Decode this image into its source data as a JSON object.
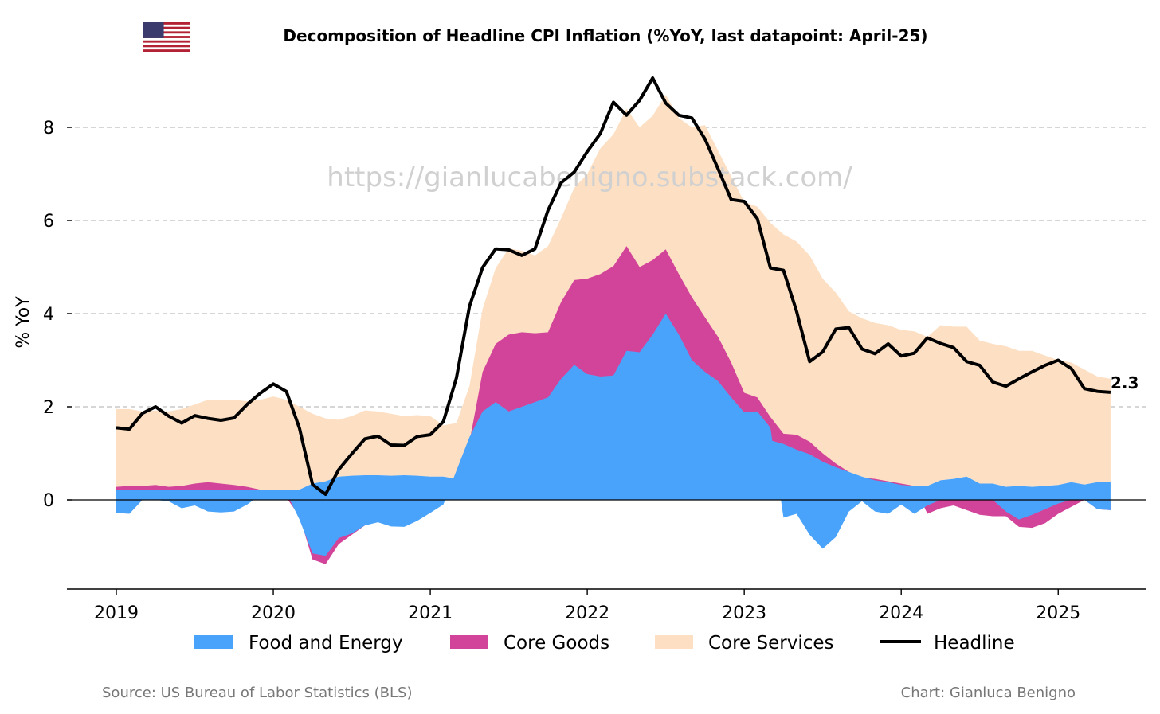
{
  "title": "Decomposition of Headline CPI Inflation (%YoY, last datapoint: April-25)",
  "watermark": "https://gianlucabenigno.substack.com/",
  "source": "Source: US Bureau of Labor Statistics (BLS)",
  "credit": "Chart: Gianluca Benigno",
  "flag_icon": "us-flag-icon",
  "chart_data": {
    "type": "area",
    "ylabel": "% YoY",
    "ylim": [
      -1.9,
      9.3
    ],
    "yticks": [
      0,
      2,
      4,
      6,
      8
    ],
    "xticks": [
      "2019",
      "2020",
      "2021",
      "2022",
      "2023",
      "2024",
      "2025"
    ],
    "x_start": "2019-01",
    "x_end": "2025-04",
    "grid": "horizontal dashed",
    "legend_position": "bottom",
    "end_label": "2.3",
    "colors": {
      "food_energy": "#4aa3fb",
      "core_goods": "#d2449a",
      "core_services": "#fde0c4",
      "headline": "#000000"
    },
    "series": [
      {
        "name": "Food and Energy",
        "values": [
          -0.28,
          -0.3,
          0.0,
          0.0,
          -0.03,
          -0.18,
          -0.12,
          -0.25,
          -0.27,
          -0.25,
          -0.1,
          0.1,
          0.2,
          0.15,
          -0.42,
          -1.15,
          -1.2,
          -0.82,
          -0.72,
          -0.55,
          -0.48,
          -0.57,
          -0.58,
          -0.45,
          -0.28,
          -0.1,
          0.63,
          1.35,
          1.9,
          2.1,
          1.9,
          2.0,
          2.1,
          2.2,
          2.6,
          2.9,
          2.7,
          2.65,
          2.67,
          3.2,
          3.17,
          3.55,
          4.0,
          3.55,
          3.0,
          2.75,
          2.55,
          2.2,
          1.88,
          1.9,
          1.55,
          -0.38,
          -0.3,
          -0.75,
          -1.05,
          -0.8,
          -0.25,
          -0.03,
          -0.25,
          -0.3,
          -0.1,
          -0.3,
          -0.12,
          0.0,
          0.1,
          0.1,
          0.08,
          0.0,
          -0.25,
          -0.42,
          -0.32,
          -0.2,
          -0.08,
          0.0,
          0.0,
          -0.2,
          -0.22
        ],
        "share": [
          0.22,
          0.22,
          0.22,
          0.22,
          0.22,
          0.22,
          0.22,
          0.22,
          0.22,
          0.22,
          0.22,
          0.22,
          0.22,
          0.22,
          0.22,
          0.35,
          0.4,
          0.5,
          0.52,
          0.53,
          0.53,
          0.52,
          0.53,
          0.52,
          0.5,
          0.5,
          0.45,
          0.4,
          0.32,
          0.3,
          0.32,
          0.4,
          0.5,
          0.6,
          0.7,
          0.78,
          0.82,
          0.9,
          1.0,
          1.1,
          1.2,
          1.3,
          1.35,
          1.4,
          1.45,
          1.48,
          1.45,
          1.42,
          1.4,
          1.35,
          1.28,
          1.2,
          1.08,
          0.98,
          0.82,
          0.7,
          0.6,
          0.5,
          0.42,
          0.38,
          0.32,
          0.3,
          0.3,
          0.42,
          0.45,
          0.5,
          0.35,
          0.35,
          0.28,
          0.3,
          0.28,
          0.3,
          0.32,
          0.38,
          0.33,
          0.38,
          0.38
        ]
      },
      {
        "name": "Core Goods",
        "values": [
          0.28,
          0.3,
          0.3,
          0.32,
          0.28,
          0.3,
          0.35,
          0.38,
          0.35,
          0.32,
          0.28,
          0.22,
          0.2,
          0.05,
          -0.35,
          -1.28,
          -1.38,
          -0.95,
          -0.75,
          -0.55,
          -0.45,
          -0.5,
          -0.5,
          -0.4,
          -0.25,
          -0.05,
          0.35,
          1.25,
          2.75,
          3.35,
          3.55,
          3.6,
          3.58,
          3.6,
          4.25,
          4.72,
          4.75,
          4.85,
          5.02,
          5.45,
          5.0,
          5.15,
          5.38,
          4.85,
          4.35,
          3.92,
          3.5,
          2.95,
          2.3,
          2.2,
          1.78,
          1.42,
          1.4,
          1.25,
          1.0,
          0.78,
          0.6,
          0.48,
          0.45,
          0.4,
          0.35,
          0.3,
          -0.3,
          -0.18,
          -0.12,
          -0.22,
          -0.32,
          -0.35,
          -0.35,
          -0.58,
          -0.6,
          -0.5,
          -0.3,
          -0.15,
          0.0,
          -0.2,
          -0.22
        ]
      },
      {
        "name": "Core Services",
        "values": [
          1.95,
          1.95,
          1.9,
          1.92,
          1.9,
          1.95,
          2.05,
          2.15,
          2.15,
          2.15,
          2.12,
          2.15,
          2.22,
          2.15,
          2.0,
          1.85,
          1.75,
          1.72,
          1.8,
          1.92,
          1.9,
          1.85,
          1.8,
          1.82,
          1.8,
          1.6,
          1.65,
          2.45,
          4.1,
          4.98,
          5.4,
          5.35,
          5.25,
          5.45,
          6.05,
          6.7,
          7.0,
          7.55,
          7.85,
          8.4,
          8.0,
          8.25,
          8.7,
          8.2,
          8.0,
          8.05,
          7.5,
          6.95,
          6.4,
          6.3,
          5.95,
          5.7,
          5.55,
          5.25,
          4.75,
          4.45,
          4.05,
          3.9,
          3.8,
          3.75,
          3.65,
          3.62,
          3.5,
          3.75,
          3.72,
          3.72,
          3.42,
          3.35,
          3.3,
          3.2,
          3.2,
          3.1,
          3.0,
          2.95,
          2.8,
          2.65,
          2.6
        ]
      },
      {
        "name": "Headline",
        "values": [
          1.55,
          1.52,
          1.86,
          2.0,
          1.8,
          1.65,
          1.81,
          1.75,
          1.71,
          1.76,
          2.05,
          2.29,
          2.49,
          2.33,
          1.54,
          0.33,
          0.12,
          0.65,
          0.99,
          1.31,
          1.37,
          1.18,
          1.17,
          1.36,
          1.4,
          1.68,
          2.62,
          4.16,
          4.99,
          5.39,
          5.37,
          5.25,
          5.39,
          6.22,
          6.81,
          7.04,
          7.48,
          7.87,
          8.54,
          8.26,
          8.58,
          9.06,
          8.52,
          8.26,
          8.2,
          7.75,
          7.11,
          6.45,
          6.41,
          6.04,
          4.98,
          4.93,
          4.05,
          2.97,
          3.18,
          3.67,
          3.7,
          3.24,
          3.14,
          3.35,
          3.09,
          3.15,
          3.48,
          3.36,
          3.27,
          2.97,
          2.89,
          2.53,
          2.44,
          2.6,
          2.75,
          2.89,
          3.0,
          2.82,
          2.39,
          2.33,
          2.31
        ]
      }
    ]
  },
  "legend": [
    {
      "label": "Food and Energy",
      "kind": "area",
      "color": "#4aa3fb"
    },
    {
      "label": "Core Goods",
      "kind": "area",
      "color": "#d2449a"
    },
    {
      "label": "Core Services",
      "kind": "area",
      "color": "#fde0c4"
    },
    {
      "label": "Headline",
      "kind": "line",
      "color": "#000000"
    }
  ]
}
